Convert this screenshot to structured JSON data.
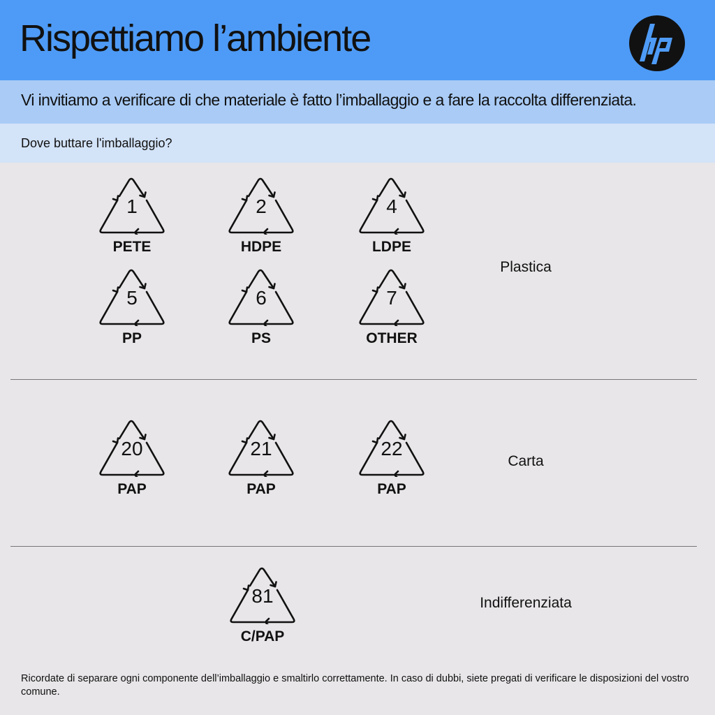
{
  "header": {
    "title": "Rispettiamo l’ambiente",
    "logo_text": "hp",
    "color": "#4e9bf7"
  },
  "subtitle": "Vi invitiamo a verificare di che materiale è fatto l’imballaggio e a fare la raccolta differenziata.",
  "question": "Dove buttare l'imballaggio?",
  "sections": [
    {
      "category": "Plastica",
      "symbols": [
        {
          "number": "1",
          "label": "PETE"
        },
        {
          "number": "2",
          "label": "HDPE"
        },
        {
          "number": "4",
          "label": "LDPE"
        },
        {
          "number": "5",
          "label": "PP"
        },
        {
          "number": "6",
          "label": "PS"
        },
        {
          "number": "7",
          "label": "OTHER"
        }
      ]
    },
    {
      "category": "Carta",
      "symbols": [
        {
          "number": "20",
          "label": "PAP"
        },
        {
          "number": "21",
          "label": "PAP"
        },
        {
          "number": "22",
          "label": "PAP"
        }
      ]
    },
    {
      "category": "Indifferenziata",
      "symbols": [
        {
          "number": "81",
          "label": "C/PAP"
        }
      ]
    }
  ],
  "footer": "Ricordate di separare ogni componente dell’imballaggio e smaltirlo correttamente. In caso di dubbi, siete pregati di verificare le disposizioni del vostro comune."
}
